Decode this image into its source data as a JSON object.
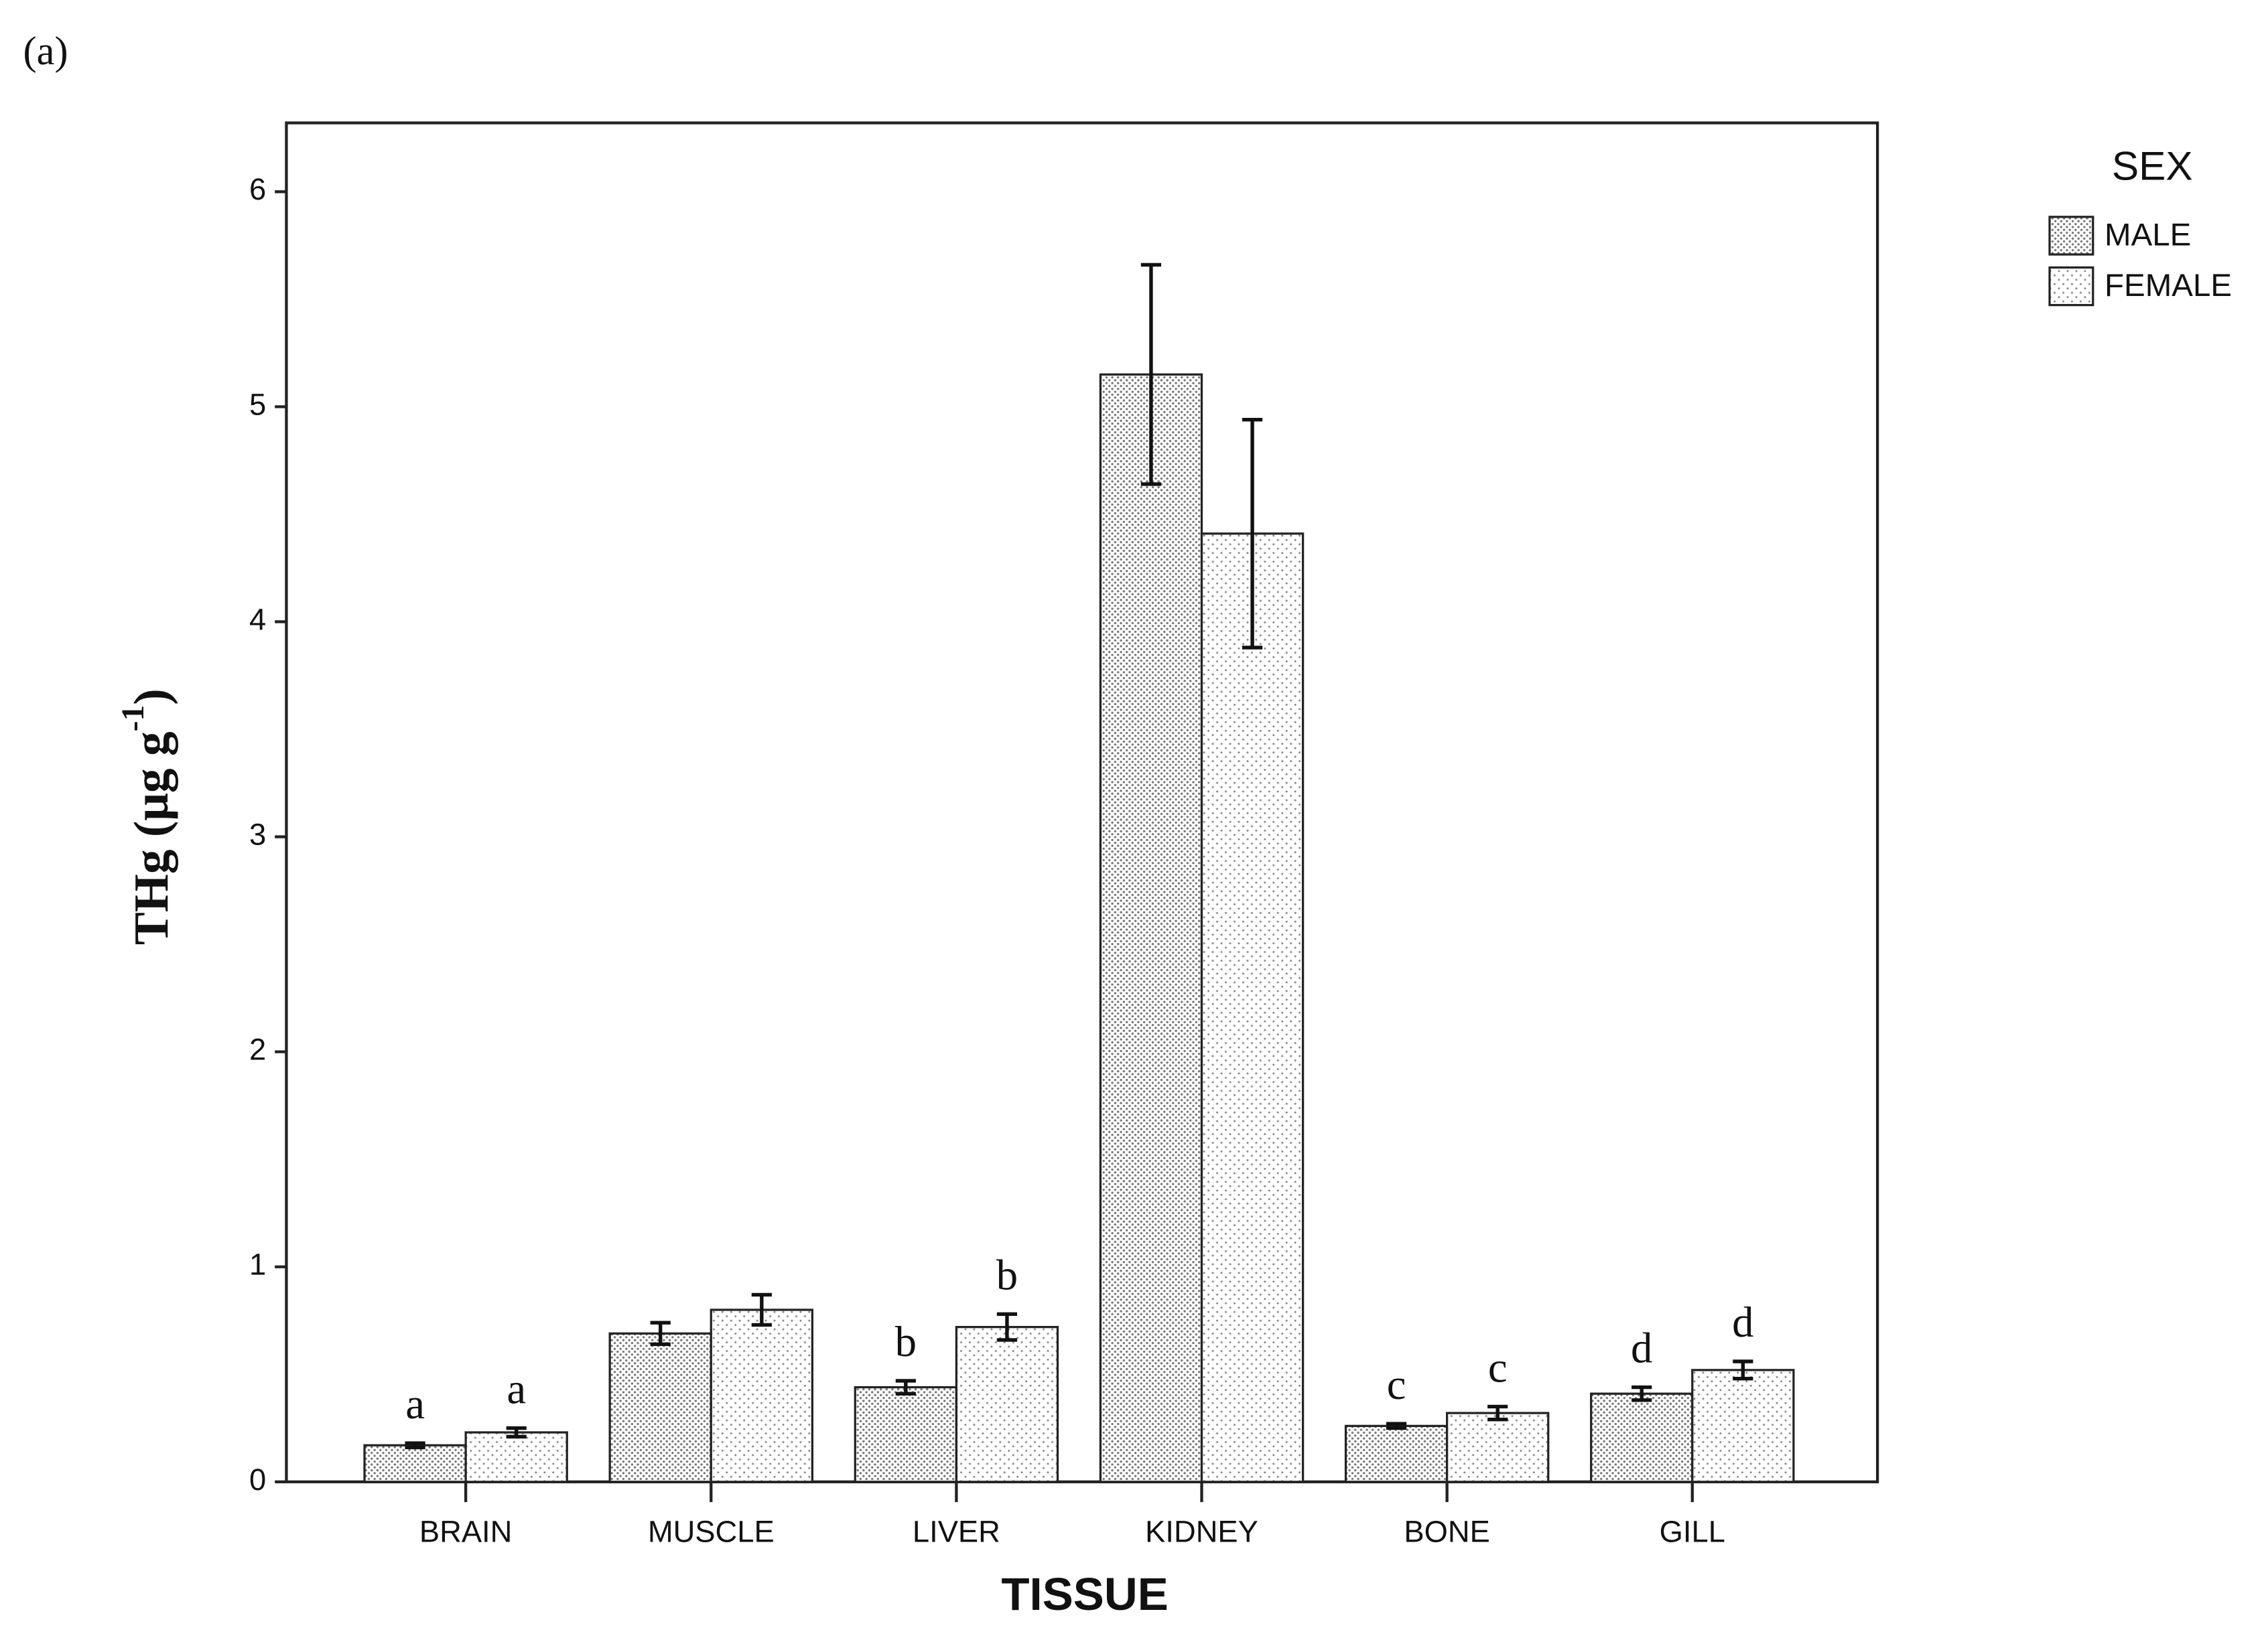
{
  "panel_label": "(a)",
  "chart_data": {
    "type": "bar",
    "xlabel": "TISSUE",
    "ylabel_parts": [
      "THg (μg g",
      "-1",
      ")"
    ],
    "legend_title": "SEX",
    "categories": [
      "BRAIN",
      "MUSCLE",
      "LIVER",
      "KIDNEY",
      "BONE",
      "GILL"
    ],
    "series": [
      {
        "name": "MALE",
        "color": "#8c8c8c",
        "pattern": "dense",
        "values": [
          0.17,
          0.69,
          0.44,
          5.15,
          0.26,
          0.41
        ],
        "errors": [
          0.01,
          0.05,
          0.03,
          0.51,
          0.01,
          0.03
        ],
        "annotations": [
          "a",
          null,
          "b",
          null,
          "c",
          "d"
        ]
      },
      {
        "name": "FEMALE",
        "color": "#8c8c8c",
        "pattern": "sparse",
        "values": [
          0.23,
          0.8,
          0.72,
          4.41,
          0.32,
          0.52
        ],
        "errors": [
          0.02,
          0.07,
          0.06,
          0.53,
          0.03,
          0.04
        ],
        "annotations": [
          "a",
          null,
          "b",
          null,
          "c",
          "d"
        ]
      }
    ],
    "ylim": [
      0,
      6.32
    ],
    "yticks": [
      0,
      1,
      2,
      3,
      4,
      5,
      6
    ],
    "grid": false
  }
}
